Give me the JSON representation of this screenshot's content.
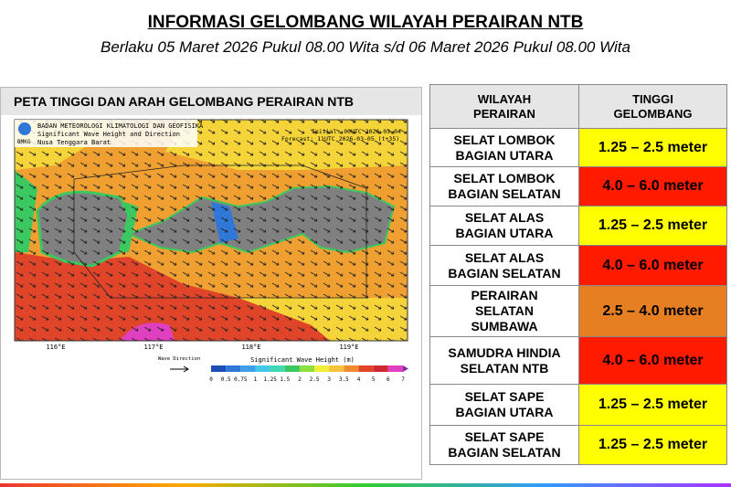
{
  "header": {
    "title": "INFORMASI GELOMBANG WILAYAH PERAIRAN NTB",
    "subtitle": "Berlaku 05 Maret 2026 Pukul 08.00 Wita s/d 06 Maret 2026 Pukul 08.00 Wita"
  },
  "map": {
    "panel_title": "PETA TINGGI DAN ARAH GELOMBANG PERAIRAN NTB",
    "agency": "BADAN METEOROLOGI KLIMATOLOGI DAN GEOFISIKA",
    "product": "Significant Wave Height and Direction",
    "region": "Nusa Tenggara Barat",
    "logo": "BMKG",
    "initial": "Initial: 00UTC 2026-03-04",
    "forecast": "Forecast: 11UTC 2026-03-05 (t+35)",
    "longitudes": [
      "116°E",
      "117°E",
      "118°E",
      "119°E"
    ],
    "wave_direction": "Wave Direction",
    "legend": {
      "title": "Significant Wave Height (m)",
      "ticks": [
        0,
        0.5,
        0.75,
        1,
        1.25,
        1.5,
        2,
        2.5,
        3,
        3.5,
        4,
        5,
        6,
        7
      ],
      "colors": [
        "#1f4fb4",
        "#2f78d8",
        "#3fa0e8",
        "#44c8e8",
        "#3fd8b0",
        "#3cc860",
        "#8ee040",
        "#f0f03a",
        "#f5c23a",
        "#ef8a2e",
        "#e0452a",
        "#d02830",
        "#e040c0"
      ]
    }
  },
  "table": {
    "headers": [
      [
        "WILAYAH",
        "PERAIRAN"
      ],
      [
        "TINGGI",
        "GELOMBANG"
      ]
    ],
    "rows": [
      {
        "name": [
          "SELAT LOMBOK",
          "BAGIAN UTARA"
        ],
        "height": "1.25 – 2.5 meter",
        "color": "#ffff00"
      },
      {
        "name": [
          "SELAT LOMBOK",
          "BAGIAN SELATAN"
        ],
        "height": "4.0 – 6.0 meter",
        "color": "#ff1a00"
      },
      {
        "name": [
          "SELAT ALAS",
          "BAGIAN UTARA"
        ],
        "height": "1.25 – 2.5 meter",
        "color": "#ffff00"
      },
      {
        "name": [
          "SELAT ALAS",
          "BAGIAN SELATAN"
        ],
        "height": "4.0 – 6.0 meter",
        "color": "#ff1a00"
      },
      {
        "name": [
          "PERAIRAN",
          "SELATAN",
          "SUMBAWA"
        ],
        "height": "2.5 – 4.0 meter",
        "color": "#e67e22"
      },
      {
        "name": [
          "SAMUDRA HINDIA",
          "SELATAN NTB"
        ],
        "height": "4.0 – 6.0 meter",
        "color": "#ff1a00"
      },
      {
        "name": [
          "SELAT SAPE",
          "BAGIAN UTARA"
        ],
        "height": "1.25 – 2.5 meter",
        "color": "#ffff00"
      },
      {
        "name": [
          "SELAT SAPE",
          "BAGIAN SELATAN"
        ],
        "height": "1.25 – 2.5 meter",
        "color": "#ffff00"
      }
    ]
  }
}
